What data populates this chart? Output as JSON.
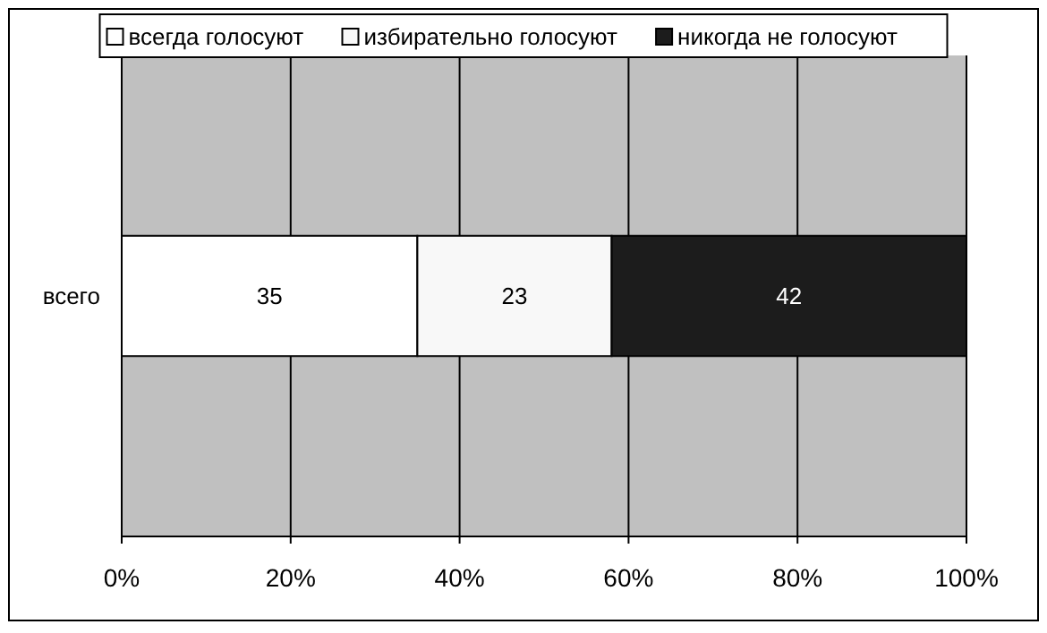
{
  "chart_data": {
    "type": "bar",
    "orientation": "horizontal",
    "stacked": true,
    "categories": [
      "всего"
    ],
    "series": [
      {
        "name": "всегда голосуют",
        "color": "#ffffff",
        "values": [
          35
        ]
      },
      {
        "name": "избирательно голосуют",
        "color": "#f8f8f8",
        "values": [
          23
        ]
      },
      {
        "name": "никогда не голосуют",
        "color": "#1c1c1c",
        "values": [
          42
        ]
      }
    ],
    "xlim": [
      0,
      100
    ],
    "xticks": [
      {
        "value": 0,
        "label": "0%"
      },
      {
        "value": 20,
        "label": "20%"
      },
      {
        "value": 40,
        "label": "40%"
      },
      {
        "value": 60,
        "label": "60%"
      },
      {
        "value": 80,
        "label": "80%"
      },
      {
        "value": 100,
        "label": "100%"
      }
    ],
    "grid": "x",
    "legend": "top",
    "data_labels": true
  }
}
